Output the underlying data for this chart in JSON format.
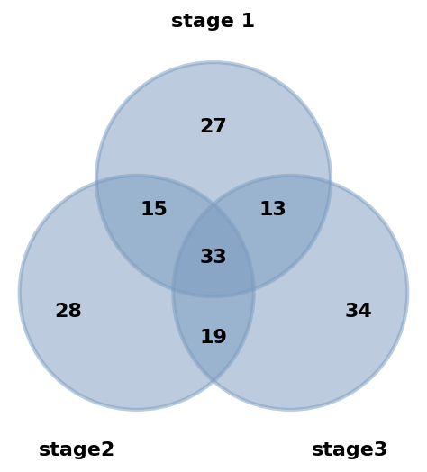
{
  "title_top": "stage 1",
  "label_bottom_left": "stage2",
  "label_bottom_right": "stage3",
  "values": {
    "top_only": "27",
    "left_only": "28",
    "right_only": "34",
    "top_left": "15",
    "top_right": "13",
    "bottom_overlap": "19",
    "center": "33"
  },
  "circle_color": "#7a9bbf",
  "circle_alpha": 0.5,
  "circle_edge_color": "white",
  "circle_edge_width": 3.0,
  "background_color": "white",
  "text_color": "black",
  "title_fontsize": 16,
  "label_fontsize": 16,
  "value_fontsize": 16,
  "figsize": [
    4.74,
    5.24
  ],
  "dpi": 100
}
